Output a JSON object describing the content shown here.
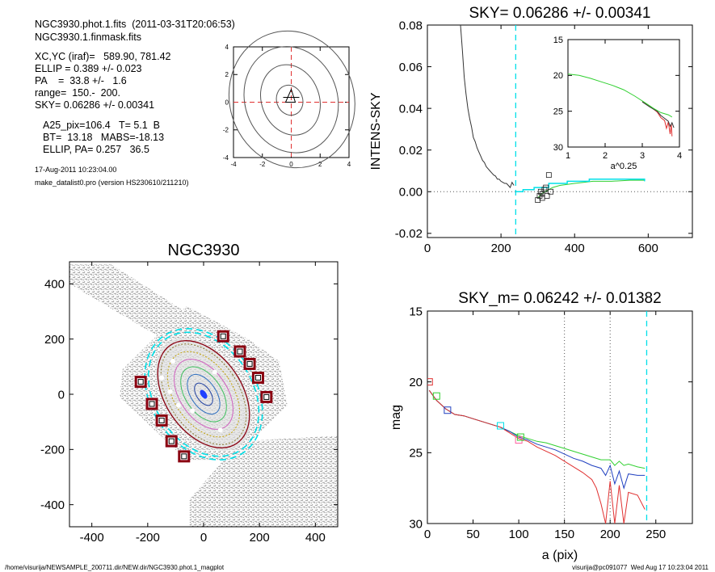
{
  "info": {
    "lines_a": [
      "NGC3930.phot.1.fits  (2011-03-31T20:06:53)",
      "NGC3930.1.finmask.fits"
    ],
    "lines_b": [
      "XC,YC (iraf)=   589.90, 781.42",
      "ELLIP = 0.389 +/- 0.023",
      "PA    =  33.8 +/-   1.6",
      "range=  150.-  200.",
      "SKY= 0.06286 +/- 0.00341"
    ],
    "lines_c": [
      "A25_pix=106.4   T= 5.1  B",
      "BT=  13.18   MABS=-18.13",
      "ELLIP, PA= 0.257   36.5"
    ],
    "date": "17-Aug-2011 10:23:04.00",
    "program": "make_datalist0.pro (version HS230610/211210)"
  },
  "footer": {
    "path": "/home/visurija/NEWSAMPLE_200711.dir/NEW.dir/NGC3930.phot.1_magplot",
    "user": "visurija@pc091077  Wed Aug 17 10:23:04 2011"
  },
  "colors": {
    "cyan": "#00e0e8",
    "red": "#e03030",
    "green": "#30d030",
    "blue": "#2040c0",
    "maroon": "#8a0010",
    "pink": "#ff60a0",
    "dotted": "#555555"
  },
  "chart_data": [
    {
      "id": "contour",
      "type": "contour",
      "xlim": [
        -4,
        4
      ],
      "ylim": [
        -4,
        4
      ],
      "xticks": [
        "-4",
        "-2",
        "0",
        "2",
        "4"
      ],
      "yticks": [
        "-4",
        "-2",
        "0",
        "2",
        "4"
      ]
    },
    {
      "id": "sky",
      "type": "line",
      "title": "SKY= 0.06286 +/- 0.00341",
      "ylabel": "INTENS-SKY",
      "xlim": [
        0,
        720
      ],
      "ylim": [
        -0.022,
        0.08
      ],
      "xticks": [
        "0",
        "200",
        "400",
        "600"
      ],
      "yticks": [
        "-0.02",
        "0.00",
        "0.02",
        "0.04",
        "0.06",
        "0.08"
      ],
      "vline_x": 240,
      "profile": [
        [
          90,
          0.08
        ],
        [
          95,
          0.068
        ],
        [
          100,
          0.055
        ],
        [
          105,
          0.047
        ],
        [
          110,
          0.04
        ],
        [
          115,
          0.035
        ],
        [
          120,
          0.031
        ],
        [
          125,
          0.026
        ],
        [
          130,
          0.024
        ],
        [
          135,
          0.021
        ],
        [
          140,
          0.019
        ],
        [
          145,
          0.017
        ],
        [
          150,
          0.015
        ],
        [
          155,
          0.014
        ],
        [
          160,
          0.012
        ],
        [
          165,
          0.011
        ],
        [
          170,
          0.01
        ],
        [
          175,
          0.009
        ],
        [
          180,
          0.008
        ],
        [
          185,
          0.0075
        ],
        [
          190,
          0.006
        ],
        [
          195,
          0.006
        ],
        [
          200,
          0.005
        ],
        [
          205,
          0.0045
        ],
        [
          210,
          0.004
        ],
        [
          215,
          0.004
        ],
        [
          220,
          0.003
        ],
        [
          225,
          0.002
        ],
        [
          230,
          0.0045
        ],
        [
          235,
          0.003
        ]
      ],
      "outer_cyan": [
        [
          240,
          0.0
        ],
        [
          260,
          0.0
        ],
        [
          260,
          0.001
        ],
        [
          290,
          0.001
        ],
        [
          290,
          0.002
        ],
        [
          330,
          0.002
        ],
        [
          330,
          0.004
        ],
        [
          380,
          0.004
        ],
        [
          380,
          0.005
        ],
        [
          440,
          0.005
        ],
        [
          440,
          0.006
        ],
        [
          590,
          0.006
        ],
        [
          590,
          0.005
        ]
      ],
      "outer_green": [
        [
          300,
          -0.003
        ],
        [
          310,
          -0.001
        ],
        [
          320,
          0.0
        ],
        [
          340,
          0.002
        ],
        [
          360,
          0.003
        ],
        [
          400,
          0.004
        ],
        [
          450,
          0.005
        ],
        [
          500,
          0.005
        ],
        [
          550,
          0.0055
        ],
        [
          590,
          0.0055
        ]
      ],
      "squares": [
        [
          300,
          -0.004
        ],
        [
          305,
          -0.002
        ],
        [
          308,
          0.0
        ],
        [
          312,
          -0.001
        ],
        [
          318,
          0.001
        ],
        [
          322,
          0.002
        ],
        [
          325,
          -0.002
        ],
        [
          330,
          0.008
        ],
        [
          335,
          0.0
        ],
        [
          312,
          -0.003
        ]
      ],
      "inset": {
        "xlabel": "a^0.25",
        "xlim": [
          1,
          4
        ],
        "ylim": [
          15,
          30
        ],
        "xticks": [
          "1",
          "2",
          "3",
          "4"
        ],
        "yticks": [
          "15",
          "20",
          "25",
          "30"
        ],
        "green": [
          [
            1,
            19.8
          ],
          [
            1.3,
            20.0
          ],
          [
            1.6,
            20.4
          ],
          [
            1.9,
            20.9
          ],
          [
            2.2,
            21.4
          ],
          [
            2.5,
            22.0
          ],
          [
            2.8,
            22.9
          ],
          [
            3.1,
            23.9
          ],
          [
            3.3,
            24.6
          ],
          [
            3.5,
            25.2
          ],
          [
            3.7,
            25.5
          ],
          [
            3.8,
            25.8
          ]
        ],
        "red": [
          [
            3.0,
            23.6
          ],
          [
            3.2,
            24.3
          ],
          [
            3.4,
            25.1
          ],
          [
            3.5,
            25.9
          ],
          [
            3.6,
            26.3
          ],
          [
            3.65,
            27.4
          ],
          [
            3.7,
            26.5
          ],
          [
            3.75,
            28.2
          ],
          [
            3.78,
            26.8
          ],
          [
            3.8,
            28.5
          ]
        ],
        "dark": [
          [
            3.0,
            23.7
          ],
          [
            3.2,
            24.4
          ],
          [
            3.4,
            25.0
          ],
          [
            3.5,
            25.6
          ],
          [
            3.6,
            26.0
          ],
          [
            3.7,
            26.4
          ],
          [
            3.75,
            27.1
          ],
          [
            3.8,
            26.6
          ],
          [
            3.85,
            27.3
          ]
        ]
      }
    },
    {
      "id": "image",
      "type": "image",
      "title": "NGC3930",
      "xlim": [
        -480,
        480
      ],
      "ylim": [
        -480,
        480
      ],
      "xticks": [
        "-400",
        "-200",
        "0",
        "200",
        "400"
      ],
      "yticks": [
        "-400",
        "-200",
        "0",
        "200",
        "400"
      ],
      "masks": [
        [
          -225,
          45
        ],
        [
          -185,
          -35
        ],
        [
          -150,
          -95
        ],
        [
          -115,
          -170
        ],
        [
          -70,
          -225
        ],
        [
          70,
          210
        ],
        [
          130,
          155
        ],
        [
          165,
          110
        ],
        [
          195,
          60
        ],
        [
          225,
          -10
        ]
      ]
    },
    {
      "id": "mag",
      "type": "line",
      "title": "SKY_m=  0.06242 +/- 0.01382",
      "xlabel": "a (pix)",
      "ylabel": "mag",
      "xlim": [
        0,
        290
      ],
      "ylim": [
        15,
        30
      ],
      "xticks": [
        "0",
        "50",
        "100",
        "150",
        "200",
        "250"
      ],
      "yticks": [
        "15",
        "20",
        "25",
        "30"
      ],
      "dotted_x": [
        150,
        200
      ],
      "cyan_x": 240,
      "series": [
        {
          "color": "green",
          "points": [
            [
              2,
              20.6
            ],
            [
              10,
              21.3
            ],
            [
              20,
              21.9
            ],
            [
              30,
              22.3
            ],
            [
              40,
              22.4
            ],
            [
              50,
              22.6
            ],
            [
              60,
              22.8
            ],
            [
              70,
              23.0
            ],
            [
              80,
              23.2
            ],
            [
              90,
              23.5
            ],
            [
              100,
              23.8
            ],
            [
              110,
              24.0
            ],
            [
              120,
              24.2
            ],
            [
              130,
              24.3
            ],
            [
              140,
              24.5
            ],
            [
              150,
              24.7
            ],
            [
              160,
              24.9
            ],
            [
              170,
              25.1
            ],
            [
              180,
              25.3
            ],
            [
              190,
              25.5
            ],
            [
              200,
              25.5
            ],
            [
              205,
              25.9
            ],
            [
              210,
              25.6
            ],
            [
              215,
              25.9
            ],
            [
              220,
              25.8
            ],
            [
              230,
              26.0
            ],
            [
              238,
              26.1
            ]
          ]
        },
        {
          "color": "blue",
          "points": [
            [
              2,
              20.6
            ],
            [
              10,
              21.3
            ],
            [
              20,
              21.9
            ],
            [
              30,
              22.3
            ],
            [
              40,
              22.4
            ],
            [
              50,
              22.6
            ],
            [
              60,
              22.8
            ],
            [
              70,
              23.0
            ],
            [
              80,
              23.2
            ],
            [
              90,
              23.5
            ],
            [
              100,
              23.9
            ],
            [
              110,
              24.1
            ],
            [
              120,
              24.4
            ],
            [
              130,
              24.6
            ],
            [
              140,
              24.8
            ],
            [
              150,
              25.1
            ],
            [
              160,
              25.4
            ],
            [
              170,
              25.6
            ],
            [
              180,
              25.9
            ],
            [
              190,
              26.1
            ],
            [
              195,
              26.6
            ],
            [
              200,
              25.9
            ],
            [
              205,
              27.2
            ],
            [
              210,
              26.3
            ],
            [
              215,
              27.5
            ],
            [
              220,
              26.5
            ],
            [
              230,
              26.6
            ],
            [
              238,
              26.6
            ]
          ]
        },
        {
          "color": "red",
          "points": [
            [
              2,
              20.6
            ],
            [
              10,
              21.3
            ],
            [
              20,
              21.9
            ],
            [
              30,
              22.3
            ],
            [
              40,
              22.4
            ],
            [
              50,
              22.6
            ],
            [
              60,
              22.8
            ],
            [
              70,
              23.0
            ],
            [
              80,
              23.2
            ],
            [
              90,
              23.6
            ],
            [
              100,
              24.0
            ],
            [
              110,
              24.2
            ],
            [
              120,
              24.6
            ],
            [
              130,
              24.9
            ],
            [
              140,
              25.2
            ],
            [
              150,
              25.6
            ],
            [
              160,
              26.0
            ],
            [
              170,
              26.4
            ],
            [
              180,
              26.9
            ],
            [
              185,
              27.5
            ],
            [
              190,
              28.6
            ],
            [
              195,
              30.0
            ],
            [
              200,
              27.0
            ],
            [
              205,
              30.0
            ],
            [
              210,
              27.3
            ],
            [
              215,
              30.0
            ],
            [
              220,
              27.8
            ],
            [
              230,
              28.0
            ],
            [
              238,
              29.0
            ]
          ]
        }
      ],
      "squares": [
        {
          "x": 2,
          "y": 20.0,
          "color": "red"
        },
        {
          "x": 10,
          "y": 21.0,
          "color": "green"
        },
        {
          "x": 22,
          "y": 22.0,
          "color": "blue"
        },
        {
          "x": 80,
          "y": 23.1,
          "color": "cyan"
        },
        {
          "x": 100,
          "y": 24.1,
          "color": "pink"
        },
        {
          "x": 102,
          "y": 23.9,
          "color": "green"
        }
      ]
    }
  ]
}
